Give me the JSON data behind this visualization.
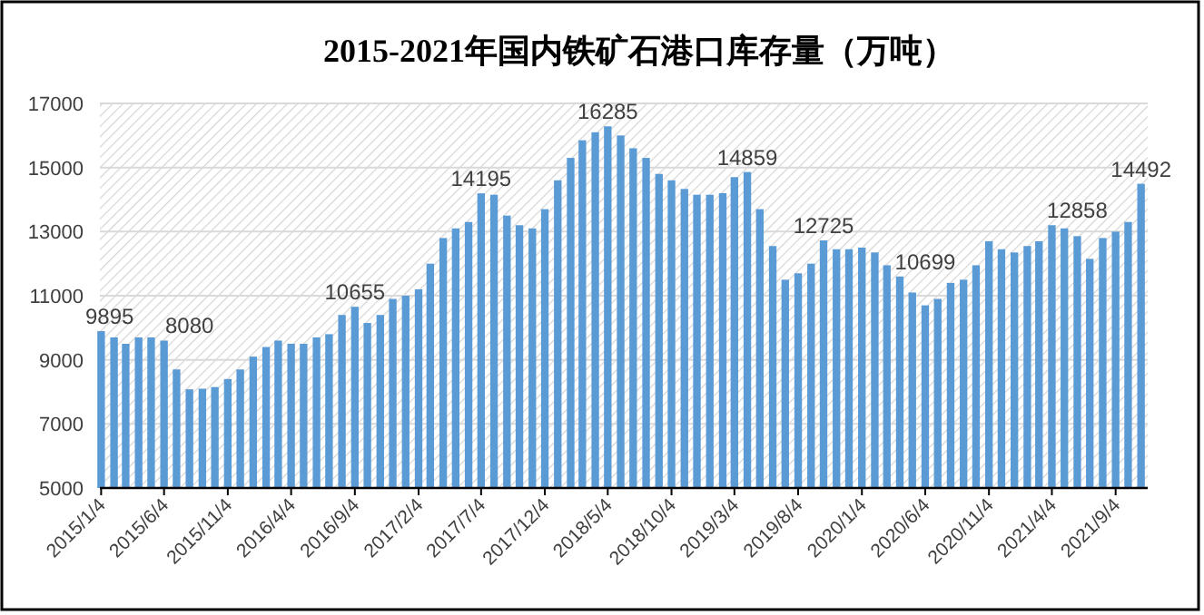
{
  "chart_data": {
    "type": "bar",
    "title": "2015-2021年国内铁矿石港口库存量（万吨）",
    "x": [
      "2015-01-04",
      "2015-02-04",
      "2015-03-04",
      "2015-04-04",
      "2015-05-04",
      "2015-06-04",
      "2015-07-04",
      "2015-08-04",
      "2015-09-04",
      "2015-10-04",
      "2015-11-04",
      "2015-12-04",
      "2016-01-04",
      "2016-02-04",
      "2016-03-04",
      "2016-04-04",
      "2016-05-04",
      "2016-06-04",
      "2016-07-04",
      "2016-08-04",
      "2016-09-04",
      "2016-10-04",
      "2016-11-04",
      "2016-12-04",
      "2017-01-04",
      "2017-02-04",
      "2017-03-04",
      "2017-04-04",
      "2017-05-04",
      "2017-06-04",
      "2017-07-04",
      "2017-08-04",
      "2017-09-04",
      "2017-10-04",
      "2017-11-04",
      "2017-12-04",
      "2018-01-04",
      "2018-02-04",
      "2018-03-04",
      "2018-04-04",
      "2018-05-04",
      "2018-06-04",
      "2018-07-04",
      "2018-08-04",
      "2018-09-04",
      "2018-10-04",
      "2018-11-04",
      "2018-12-04",
      "2019-01-04",
      "2019-02-04",
      "2019-03-04",
      "2019-04-04",
      "2019-05-04",
      "2019-06-04",
      "2019-07-04",
      "2019-08-04",
      "2019-09-04",
      "2019-10-04",
      "2019-11-04",
      "2019-12-04",
      "2020-01-04",
      "2020-02-04",
      "2020-03-04",
      "2020-04-04",
      "2020-05-04",
      "2020-06-04",
      "2020-07-04",
      "2020-08-04",
      "2020-09-04",
      "2020-10-04",
      "2020-11-04",
      "2020-12-04",
      "2021-01-04",
      "2021-02-04",
      "2021-03-04",
      "2021-04-04",
      "2021-05-04",
      "2021-06-04",
      "2021-07-04",
      "2021-08-04",
      "2021-09-04",
      "2021-10-04",
      "2021-11-04"
    ],
    "values": [
      9895,
      9700,
      9500,
      9700,
      9700,
      9600,
      8700,
      8080,
      8100,
      8150,
      8400,
      8700,
      9100,
      9400,
      9600,
      9500,
      9500,
      9700,
      9800,
      10400,
      10655,
      10150,
      10400,
      10900,
      11000,
      11200,
      12000,
      12800,
      13100,
      13300,
      14195,
      14150,
      13500,
      13200,
      13100,
      13700,
      14600,
      15300,
      15850,
      16100,
      16285,
      16000,
      15600,
      15300,
      14800,
      14600,
      14330,
      14150,
      14150,
      14200,
      14700,
      14859,
      13700,
      12550,
      11500,
      11700,
      12000,
      12725,
      12450,
      12450,
      12500,
      12350,
      11950,
      11600,
      11100,
      10699,
      10900,
      11400,
      11500,
      11950,
      12700,
      12450,
      12350,
      12550,
      12700,
      13200,
      13100,
      12858,
      12150,
      12800,
      13000,
      13300,
      14492
    ],
    "color": "#5b9bd5",
    "xlim": [
      "2015-01-01",
      "2021-11-20"
    ],
    "xticks": [
      {
        "value": "2015-01-04",
        "label": "2015/1/4"
      },
      {
        "value": "2015-06-04",
        "label": "2015/6/4"
      },
      {
        "value": "2015-11-04",
        "label": "2015/11/4"
      },
      {
        "value": "2016-04-04",
        "label": "2016/4/4"
      },
      {
        "value": "2016-09-04",
        "label": "2016/9/4"
      },
      {
        "value": "2017-02-04",
        "label": "2017/2/4"
      },
      {
        "value": "2017-07-04",
        "label": "2017/7/4"
      },
      {
        "value": "2017-12-04",
        "label": "2017/12/4"
      },
      {
        "value": "2018-05-04",
        "label": "2018/5/4"
      },
      {
        "value": "2018-10-04",
        "label": "2018/10/4"
      },
      {
        "value": "2019-03-04",
        "label": "2019/3/4"
      },
      {
        "value": "2019-08-04",
        "label": "2019/8/4"
      },
      {
        "value": "2020-01-04",
        "label": "2020/1/4"
      },
      {
        "value": "2020-06-04",
        "label": "2020/6/4"
      },
      {
        "value": "2020-11-04",
        "label": "2020/11/4"
      },
      {
        "value": "2021-04-04",
        "label": "2021/4/4"
      },
      {
        "value": "2021-09-04",
        "label": "2021/9/4"
      }
    ],
    "ylim": [
      5000,
      17000
    ],
    "yticks": [
      5000,
      7000,
      9000,
      11000,
      13000,
      15000,
      17000
    ],
    "grid": "y",
    "annotations": [
      {
        "text": "9895",
        "x": "2015-01-04",
        "y": 9895
      },
      {
        "text": "8080",
        "x": "2015-08-04",
        "y": 8080
      },
      {
        "text": "10655",
        "x": "2016-09-04",
        "y": 10655
      },
      {
        "text": "14195",
        "x": "2017-07-04",
        "y": 14195
      },
      {
        "text": "16285",
        "x": "2018-05-04",
        "y": 16285
      },
      {
        "text": "14859",
        "x": "2019-04-04",
        "y": 14859
      },
      {
        "text": "12725",
        "x": "2019-10-04",
        "y": 12725
      },
      {
        "text": "10699",
        "x": "2020-06-04",
        "y": 10699
      },
      {
        "text": "12858",
        "x": "2021-06-04",
        "y": 12858
      },
      {
        "text": "14492",
        "x": "2021-11-04",
        "y": 14492
      }
    ]
  }
}
